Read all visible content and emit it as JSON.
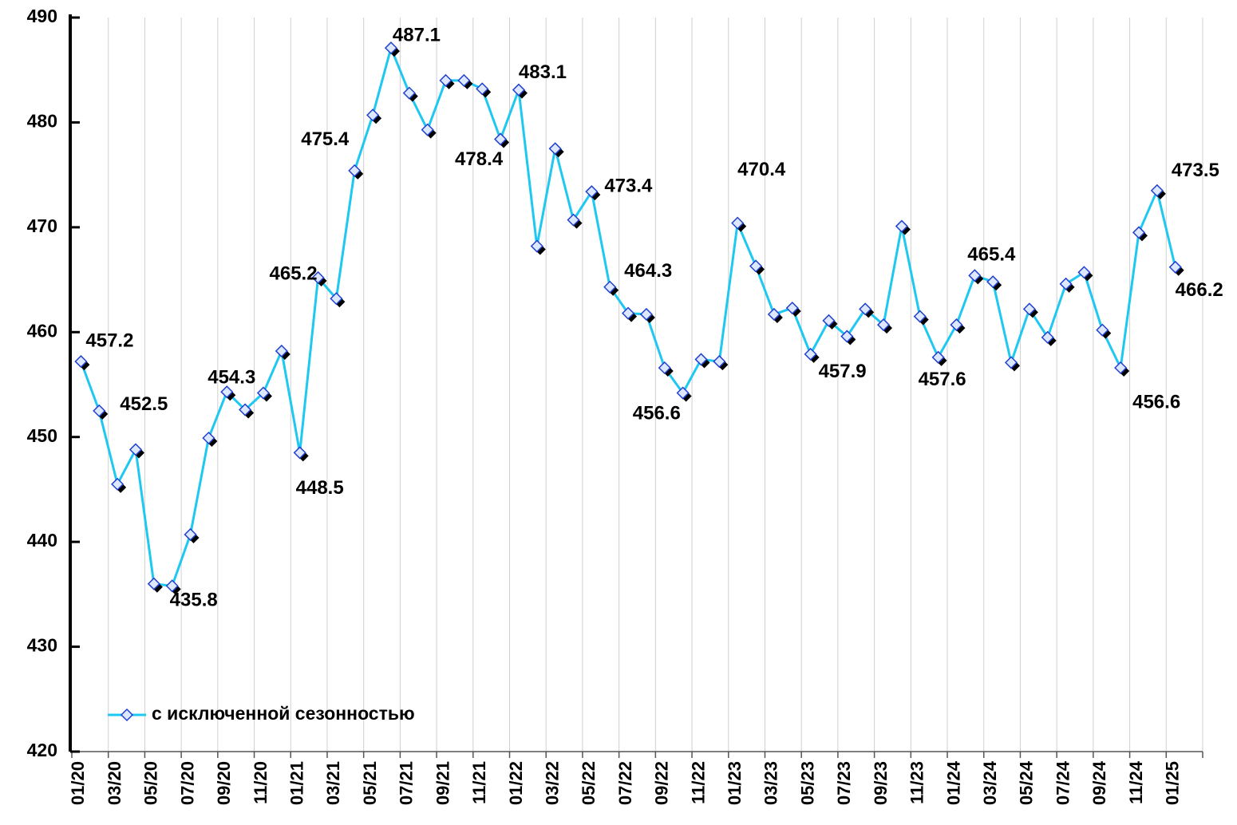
{
  "chart_data": {
    "type": "line",
    "categories": [
      "01/20",
      null,
      "03/20",
      null,
      "05/20",
      null,
      "07/20",
      null,
      "09/20",
      null,
      "11/20",
      null,
      "01/21",
      null,
      "03/21",
      null,
      "05/21",
      null,
      "07/21",
      null,
      "09/21",
      null,
      "11/21",
      null,
      "01/22",
      null,
      "03/22",
      null,
      "05/22",
      null,
      "07/22",
      null,
      "09/22",
      null,
      "11/22",
      null,
      "01/23",
      null,
      "03/23",
      null,
      "05/23",
      null,
      "07/23",
      null,
      "09/23",
      null,
      "11/23",
      null,
      "01/24",
      null,
      "03/24",
      null,
      "05/24",
      null,
      "07/24",
      null,
      "09/24",
      null,
      "11/24",
      null,
      "01/25",
      null
    ],
    "series": [
      {
        "name": "с исключенной сезонностью",
        "color": "#1ec8f0",
        "values": [
          457.2,
          452.5,
          445.5,
          448.8,
          436.0,
          435.8,
          440.7,
          449.9,
          454.3,
          452.6,
          454.2,
          458.2,
          448.5,
          465.2,
          463.2,
          475.4,
          480.7,
          487.1,
          482.8,
          479.3,
          484.0,
          484.0,
          483.2,
          478.4,
          483.1,
          468.2,
          477.5,
          470.7,
          473.4,
          464.3,
          461.8,
          461.7,
          456.6,
          454.2,
          457.4,
          457.2,
          470.4,
          466.3,
          461.7,
          462.3,
          457.9,
          461.1,
          459.6,
          462.2,
          460.7,
          470.1,
          461.5,
          457.6,
          460.7,
          465.4,
          464.8,
          457.1,
          462.2,
          459.5,
          464.6,
          465.7,
          460.2,
          456.6,
          469.5,
          473.5,
          466.2,
          null
        ],
        "value_labels": [
          "457.2",
          "452.5",
          null,
          null,
          null,
          "435.8",
          null,
          null,
          "454.3",
          null,
          null,
          null,
          "448.5",
          "465.2",
          null,
          "475.4",
          null,
          "487.1",
          null,
          null,
          null,
          null,
          null,
          "478.4",
          "483.1",
          null,
          null,
          null,
          "473.4",
          "464.3",
          null,
          null,
          "456.6",
          null,
          null,
          null,
          "470.4",
          null,
          null,
          null,
          "457.9",
          null,
          null,
          null,
          null,
          null,
          null,
          "457.6",
          null,
          "465.4",
          null,
          null,
          null,
          null,
          null,
          null,
          null,
          "456.6",
          null,
          "473.5",
          "466.2",
          null
        ]
      }
    ],
    "ylim": [
      420,
      490
    ],
    "yticks": [
      420,
      430,
      440,
      450,
      460,
      470,
      480,
      490
    ],
    "grid": "x",
    "legend": "lower left"
  }
}
